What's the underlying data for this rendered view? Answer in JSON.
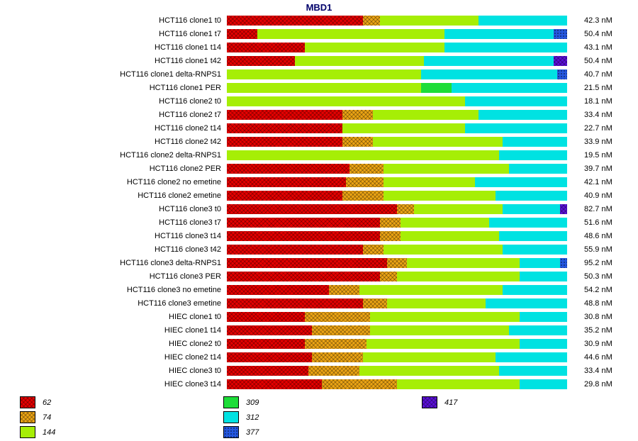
{
  "chart_data": {
    "type": "bar",
    "orientation": "horizontal",
    "stacked": true,
    "title": "MBD1",
    "unit": "nM",
    "grid": false,
    "legend_position": "bottom",
    "categories": [
      "HCT116 clone1 t0",
      "HCT116 clone1 t7",
      "HCT116 clone1 t14",
      "HCT116 clone1 t42",
      "HCT116 clone1 delta-RNPS1",
      "HCT116 clone1 PER",
      "HCT116 clone2 t0",
      "HCT116 clone2 t7",
      "HCT116 clone2 t14",
      "HCT116 clone2 t42",
      "HCT116 clone2 delta-RNPS1",
      "HCT116 clone2 PER",
      "HCT116 clone2 no emetine",
      "HCT116 clone2 emetine",
      "HCT116 clone3 t0",
      "HCT116 clone3 t7",
      "HCT116 clone3 t14",
      "HCT116 clone3 t42",
      "HCT116 clone3 delta-RNPS1",
      "HCT116 clone3 PER",
      "HCT116 clone3 no emetine",
      "HCT116 clone3 emetine",
      "HIEC clone1 t0",
      "HIEC clone1 t14",
      "HIEC clone2 t0",
      "HIEC clone2 t14",
      "HIEC clone3 t0",
      "HIEC clone3 t14"
    ],
    "row_values": [
      42.3,
      50.4,
      43.1,
      50.4,
      40.7,
      21.5,
      18.1,
      33.4,
      22.7,
      33.9,
      19.5,
      39.7,
      42.1,
      40.9,
      82.7,
      51.6,
      48.6,
      55.9,
      95.2,
      50.3,
      54.2,
      48.8,
      30.8,
      35.2,
      30.9,
      44.6,
      33.4,
      29.8
    ],
    "series": [
      {
        "name": "62",
        "color": "#e60000",
        "pattern": "crosshatch",
        "values": [
          40,
          9,
          23,
          20,
          0,
          0,
          0,
          34,
          34,
          34,
          0,
          36,
          35,
          34,
          50,
          45,
          45,
          40,
          47,
          45,
          30,
          40,
          23,
          25,
          23,
          25,
          24,
          28
        ]
      },
      {
        "name": "74",
        "color": "#eca414",
        "pattern": "crosshatch",
        "values": [
          5,
          0,
          0,
          0,
          0,
          0,
          0,
          9,
          0,
          9,
          0,
          10,
          11,
          12,
          5,
          6,
          6,
          6,
          6,
          5,
          9,
          7,
          19,
          17,
          18,
          15,
          15,
          22
        ]
      },
      {
        "name": "144",
        "color": "#a6ee06",
        "pattern": "solid",
        "values": [
          29,
          55,
          41,
          38,
          57,
          57,
          70,
          31,
          36,
          38,
          80,
          37,
          27,
          33,
          26,
          26,
          29,
          35,
          33,
          36,
          42,
          29,
          44,
          41,
          45,
          39,
          41,
          36
        ]
      },
      {
        "name": "309",
        "color": "#1ddd38",
        "pattern": "solid",
        "values": [
          0,
          0,
          0,
          0,
          0,
          9,
          0,
          0,
          0,
          0,
          0,
          0,
          0,
          0,
          0,
          0,
          0,
          0,
          0,
          0,
          0,
          0,
          0,
          0,
          0,
          0,
          0,
          0
        ]
      },
      {
        "name": "312",
        "color": "#00e2e2",
        "pattern": "solid",
        "values": [
          26,
          32,
          36,
          38,
          40,
          34,
          30,
          26,
          30,
          19,
          20,
          17,
          27,
          21,
          17,
          23,
          20,
          19,
          12,
          14,
          19,
          24,
          14,
          17,
          14,
          21,
          20,
          14
        ]
      },
      {
        "name": "377",
        "color": "#2457e0",
        "pattern": "dots",
        "values": [
          0,
          4,
          0,
          0,
          3,
          0,
          0,
          0,
          0,
          0,
          0,
          0,
          0,
          0,
          0,
          0,
          0,
          0,
          2,
          0,
          0,
          0,
          0,
          0,
          0,
          0,
          0,
          0
        ]
      },
      {
        "name": "417",
        "color": "#5a10d8",
        "pattern": "crosshatch",
        "values": [
          0,
          0,
          0,
          4,
          0,
          0,
          0,
          0,
          0,
          0,
          0,
          0,
          0,
          0,
          2,
          0,
          0,
          0,
          0,
          0,
          0,
          0,
          0,
          0,
          0,
          0,
          0,
          0
        ]
      }
    ],
    "legend_columns": [
      [
        "62",
        "74",
        "144"
      ],
      [
        "309",
        "312",
        "377"
      ],
      [
        "417"
      ]
    ]
  }
}
